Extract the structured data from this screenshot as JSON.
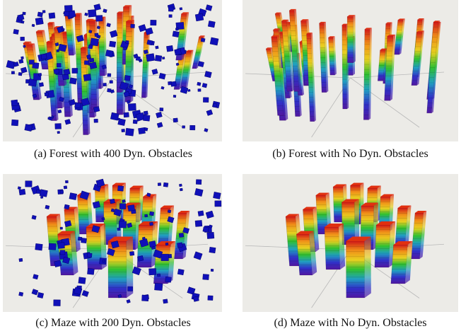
{
  "figure": {
    "panels": [
      {
        "id": "a",
        "caption": "(a) Forest with 400 Dyn. Obstacles",
        "environment": "forest",
        "dynamic_obstacles": 400
      },
      {
        "id": "b",
        "caption": "(b) Forest with No Dyn. Obstacles",
        "environment": "forest",
        "dynamic_obstacles": 0
      },
      {
        "id": "c",
        "caption": "(c) Maze with 200 Dyn. Obstacles",
        "environment": "maze",
        "dynamic_obstacles": 200
      },
      {
        "id": "d",
        "caption": "(d) Maze with No Dyn. Obstacles",
        "environment": "maze",
        "dynamic_obstacles": 0
      }
    ]
  },
  "colors": {
    "background": "#ecebe7",
    "dynamic_obstacle": "#1010b8",
    "pillar_gradient": [
      "#d01818",
      "#f09018",
      "#e8d020",
      "#30c030",
      "#20a0c0",
      "#3030c8",
      "#5018a0"
    ],
    "axis_line": "#b8b8b8"
  }
}
